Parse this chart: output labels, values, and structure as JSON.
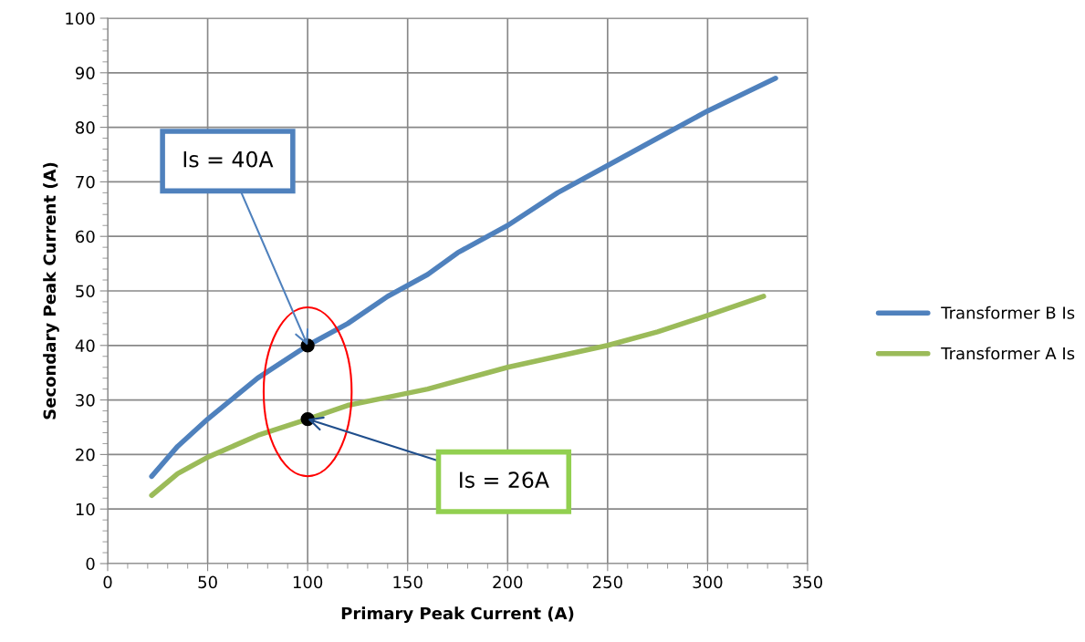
{
  "chart_data": {
    "type": "line",
    "xlabel": "Primary Peak Current (A)",
    "ylabel": "Secondary Peak Current (A)",
    "xlim": [
      0,
      350
    ],
    "xticks": [
      0,
      50,
      100,
      150,
      200,
      250,
      300,
      350
    ],
    "ylim": [
      0,
      100
    ],
    "yticks": [
      0,
      10,
      20,
      30,
      40,
      50,
      60,
      70,
      80,
      90,
      100
    ],
    "grid": true,
    "legend": "right",
    "marker": "none",
    "line_style": "solid",
    "series": [
      {
        "name": "Transformer B Is",
        "color": "#4f81bd",
        "x": [
          22,
          35,
          50,
          75,
          100,
          120,
          140,
          160,
          175,
          200,
          225,
          250,
          275,
          300,
          334
        ],
        "values": [
          16,
          21.5,
          26.5,
          34,
          40,
          44,
          49,
          53,
          57,
          62,
          68,
          73,
          78,
          83,
          89
        ]
      },
      {
        "name": "Transformer A Is",
        "color": "#9bbb59",
        "x": [
          22,
          35,
          50,
          75,
          100,
          120,
          140,
          160,
          175,
          190,
          200,
          225,
          250,
          275,
          300,
          328
        ],
        "values": [
          12.5,
          16.5,
          19.5,
          23.5,
          26.5,
          29,
          30.5,
          32,
          33.5,
          35,
          36,
          38,
          40,
          42.5,
          45.5,
          49
        ]
      }
    ],
    "annotations": [
      {
        "text": "Is = 40A",
        "x": 100,
        "y": 40
      },
      {
        "text": "Is = 26A",
        "x": 100,
        "y": 26.5
      }
    ]
  }
}
